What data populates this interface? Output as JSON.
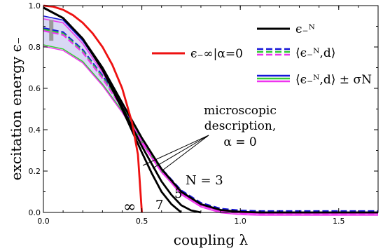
{
  "chart_data": {
    "type": "line",
    "xlabel": "coupling λ",
    "ylabel": "excitation energy ϵ₋",
    "xlim": [
      0,
      1.7
    ],
    "ylim": [
      0,
      1.0
    ],
    "xticks": [
      0.0,
      0.5,
      1.0,
      1.5
    ],
    "yticks": [
      0.0,
      0.2,
      0.4,
      0.6,
      0.8,
      1.0
    ],
    "xtick_labels": [
      "0.0",
      "0.5",
      "1.0",
      "1.5"
    ],
    "ytick_labels": [
      "0.0",
      "0.2",
      "0.4",
      "0.6",
      "0.8",
      "1.0"
    ],
    "grid": false,
    "legend_placement": "top-right",
    "legend": {
      "red_entry": "ϵ₋∞|α=0",
      "black_entry": "ϵ₋ᴺ",
      "dashed_entry": "⟨ϵ₋ᴺ,d⟩",
      "band_entry": "⟨ϵ₋ᴺ,d⟩ ± σN"
    },
    "annotations": {
      "microscopic_line1": "microscopic",
      "microscopic_line2": "description,",
      "microscopic_line3": "α = 0",
      "label_n3": "N = 3",
      "label_n5": "5",
      "label_n7": "7",
      "label_inf": "∞"
    },
    "series": [
      {
        "key": "inf",
        "x": [
          0,
          0.05,
          0.1,
          0.15,
          0.2,
          0.25,
          0.3,
          0.35,
          0.4,
          0.45,
          0.48,
          0.5
        ],
        "y": [
          1.0,
          0.995,
          0.98,
          0.954,
          0.917,
          0.866,
          0.8,
          0.714,
          0.6,
          0.436,
          0.28,
          0.0
        ]
      },
      {
        "key": "n7",
        "x": [
          0,
          0.1,
          0.2,
          0.3,
          0.4,
          0.5,
          0.55,
          0.6,
          0.65,
          0.7
        ],
        "y": [
          0.99,
          0.94,
          0.84,
          0.69,
          0.5,
          0.29,
          0.19,
          0.1,
          0.04,
          0.0
        ]
      },
      {
        "key": "n5",
        "x": [
          0,
          0.1,
          0.2,
          0.3,
          0.4,
          0.5,
          0.6,
          0.65,
          0.7,
          0.75,
          0.8
        ],
        "y": [
          0.99,
          0.94,
          0.84,
          0.69,
          0.51,
          0.32,
          0.15,
          0.085,
          0.035,
          0.01,
          0.0
        ]
      },
      {
        "key": "n3",
        "x": [
          0,
          0.1,
          0.2,
          0.3,
          0.4,
          0.5,
          0.6,
          0.7,
          0.8,
          0.9,
          1.0,
          1.1,
          1.7
        ],
        "y": [
          0.99,
          0.94,
          0.84,
          0.7,
          0.53,
          0.36,
          0.21,
          0.1,
          0.04,
          0.012,
          0.003,
          0.0,
          0.0
        ]
      },
      {
        "key": "band_upper",
        "x": [
          0,
          0.1,
          0.2,
          0.3,
          0.4,
          0.5,
          0.6,
          0.7,
          0.8,
          0.9,
          1.0,
          1.1,
          1.7
        ],
        "y": [
          0.95,
          0.93,
          0.83,
          0.69,
          0.53,
          0.36,
          0.21,
          0.1,
          0.04,
          0.012,
          0.003,
          0.0,
          0.0
        ]
      },
      {
        "key": "band_lower",
        "x": [
          0,
          0.1,
          0.2,
          0.3,
          0.4,
          0.5,
          0.6,
          0.7,
          0.8,
          0.9,
          1.0,
          1.1,
          1.7
        ],
        "y": [
          0.81,
          0.79,
          0.73,
          0.62,
          0.49,
          0.34,
          0.2,
          0.1,
          0.04,
          0.012,
          0.003,
          0.0,
          0.0
        ]
      },
      {
        "key": "mean",
        "x": [
          0,
          0.1,
          0.2,
          0.3,
          0.4,
          0.5,
          0.6,
          0.7,
          0.8,
          0.9,
          1.0,
          1.1,
          1.7
        ],
        "y": [
          0.885,
          0.865,
          0.78,
          0.655,
          0.51,
          0.35,
          0.205,
          0.1,
          0.04,
          0.012,
          0.003,
          0.0,
          0.0
        ]
      }
    ],
    "colors": {
      "inf": "#ee1111",
      "black": "#000000",
      "band_fill": "#d8d8f4",
      "blue": "#1515d8",
      "green": "#33cc33",
      "magenta": "#ee33ee",
      "gray": "#999999"
    }
  }
}
